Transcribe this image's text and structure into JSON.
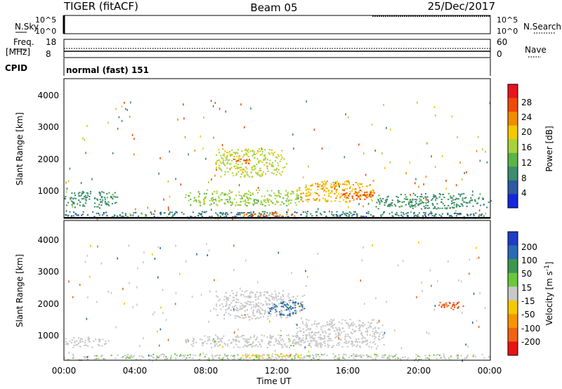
{
  "header": {
    "station": "TIGER (fitACF)",
    "beam": "Beam 05",
    "date": "25/Dec/2017"
  },
  "top_panels": {
    "nsky": {
      "label": "N.Sky",
      "left_ticks": [
        "10^5",
        "10^0"
      ],
      "right_ticks": [
        "10^5",
        "10^0"
      ],
      "right_label": "N.Search"
    },
    "freq": {
      "label_line1": "Freq.",
      "label_line2": "[MHz]",
      "left_ticks": [
        "18",
        "8"
      ],
      "right_ticks": [
        "60",
        "0"
      ],
      "right_label": "Nave"
    },
    "cpid": {
      "label": "CPID",
      "text": "normal (fast) 151"
    }
  },
  "power_colorbar": {
    "label": "Power [dB]",
    "ticks": [
      "28",
      "24",
      "20",
      "16",
      "12",
      "8",
      "4"
    ],
    "colors": [
      "#e8141e",
      "#f04a0a",
      "#f28c00",
      "#f5c800",
      "#a8d23c",
      "#5ab446",
      "#3c8c6e",
      "#2d5aa0",
      "#1428dc"
    ]
  },
  "velocity_colorbar": {
    "label_main": "Velocity [m s",
    "label_sup": "-1",
    "label_end": "]",
    "ticks": [
      "200",
      "100",
      "50",
      "15",
      "-15",
      "-50",
      "-100",
      "-200"
    ],
    "colors": [
      "#1e3cc8",
      "#2a6ab4",
      "#3c9650",
      "#6ac83c",
      "#c8c8c8",
      "#f5c800",
      "#f59600",
      "#f06414",
      "#e81414"
    ]
  },
  "axes": {
    "ylabel": "Slant Range [km]",
    "y_ticks": [
      "4000",
      "3000",
      "2000",
      "1000"
    ],
    "x_ticks": [
      "00:00",
      "04:00",
      "08:00",
      "12:00",
      "16:00",
      "20:00",
      "00:00"
    ],
    "xlabel": "Time UT"
  },
  "chart_data": [
    {
      "type": "heatmap",
      "title": "Power",
      "x_unit": "hours UT",
      "ylabel": "Slant Range [km]",
      "xlim": [
        0,
        24
      ],
      "ylim": [
        180,
        4600
      ],
      "zlim": [
        0,
        30
      ],
      "regions": [
        {
          "t0": 0.0,
          "t1": 24.0,
          "r0": 200,
          "r1": 420,
          "z": 6
        },
        {
          "t0": 0.0,
          "t1": 3.0,
          "r0": 550,
          "r1": 1050,
          "z": 8
        },
        {
          "t0": 6.8,
          "t1": 13.5,
          "r0": 600,
          "r1": 1100,
          "z": 14
        },
        {
          "t0": 13.0,
          "t1": 17.5,
          "r0": 700,
          "r1": 1400,
          "z": 20
        },
        {
          "t0": 15.5,
          "t1": 17.5,
          "r0": 800,
          "r1": 1100,
          "z": 26
        },
        {
          "t0": 8.5,
          "t1": 12.5,
          "r0": 1500,
          "r1": 2400,
          "z": 16
        },
        {
          "t0": 9.5,
          "t1": 10.5,
          "r0": 1900,
          "r1": 2100,
          "z": 26
        },
        {
          "t0": 17.5,
          "t1": 24.0,
          "r0": 500,
          "r1": 1000,
          "z": 8
        },
        {
          "t0": 10.0,
          "t1": 13.0,
          "r0": 250,
          "r1": 400,
          "z": 24
        }
      ]
    },
    {
      "type": "heatmap",
      "title": "Velocity",
      "x_unit": "hours UT",
      "ylabel": "Slant Range [km]",
      "xlim": [
        0,
        24
      ],
      "ylim": [
        180,
        4600
      ],
      "zlim": [
        -250,
        250
      ],
      "regions": [
        {
          "t0": 0.0,
          "t1": 24.0,
          "r0": 200,
          "r1": 400,
          "z": 20
        },
        {
          "t0": 0.0,
          "t1": 2.5,
          "r0": 600,
          "r1": 950,
          "z": 0
        },
        {
          "t0": 6.8,
          "t1": 15.0,
          "r0": 600,
          "r1": 1000,
          "z": 5
        },
        {
          "t0": 13.0,
          "t1": 18.0,
          "r0": 600,
          "r1": 1500,
          "z": 0
        },
        {
          "t0": 8.5,
          "t1": 13.5,
          "r0": 1500,
          "r1": 2400,
          "z": 0
        },
        {
          "t0": 11.5,
          "t1": 13.5,
          "r0": 1600,
          "r1": 2100,
          "z": 180
        },
        {
          "t0": 21.0,
          "t1": 22.5,
          "r0": 1800,
          "r1": 2100,
          "z": -200
        },
        {
          "t0": 10.0,
          "t1": 14.0,
          "r0": 250,
          "r1": 400,
          "z": -40
        }
      ]
    }
  ]
}
